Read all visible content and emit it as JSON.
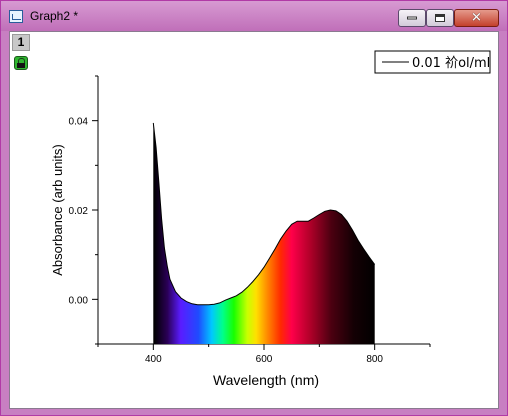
{
  "window": {
    "title": "Graph2 *",
    "controls": {
      "minimize": "minimize",
      "maximize": "maximize",
      "close": "✕"
    }
  },
  "layer": {
    "number": "1"
  },
  "chart_data": {
    "type": "area",
    "xlabel": "Wavelength (nm)",
    "ylabel": "Absorbance (arb units)",
    "xlim": [
      300,
      900
    ],
    "ylim": [
      -0.01,
      0.05
    ],
    "xticks": [
      "400",
      "600",
      "800"
    ],
    "yticks": [
      "0.00",
      "0.02",
      "0.04"
    ],
    "xtick_values": [
      400,
      600,
      800
    ],
    "ytick_values": [
      0.0,
      0.02,
      0.04
    ],
    "fill": "visible-spectrum gradient under curve",
    "legend": {
      "position": "top-right",
      "label": "0.01 祄ol/ml"
    },
    "series": [
      {
        "name": "0.01 祄ol/ml",
        "x": [
          400,
          405,
          410,
          415,
          420,
          425,
          430,
          440,
          450,
          460,
          470,
          480,
          490,
          500,
          510,
          520,
          530,
          540,
          550,
          560,
          570,
          580,
          590,
          600,
          610,
          620,
          630,
          640,
          650,
          660,
          670,
          680,
          690,
          700,
          710,
          720,
          730,
          740,
          750,
          760,
          770,
          780,
          790,
          800
        ],
        "y": [
          0.0395,
          0.034,
          0.026,
          0.018,
          0.0115,
          0.0075,
          0.0045,
          0.0017,
          0.0003,
          -0.0005,
          -0.001,
          -0.0012,
          -0.0012,
          -0.0012,
          -0.0011,
          -0.0008,
          -0.0002,
          0.0003,
          0.0008,
          0.0016,
          0.0027,
          0.004,
          0.0055,
          0.0072,
          0.0092,
          0.0113,
          0.0135,
          0.0153,
          0.0168,
          0.0175,
          0.0175,
          0.0175,
          0.0182,
          0.019,
          0.0197,
          0.02,
          0.0198,
          0.019,
          0.0175,
          0.0155,
          0.0132,
          0.0113,
          0.0095,
          0.0078
        ]
      }
    ]
  }
}
